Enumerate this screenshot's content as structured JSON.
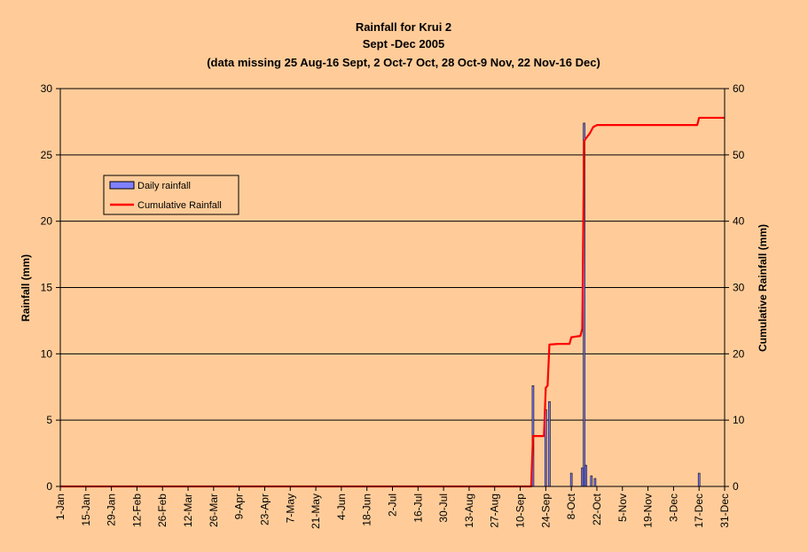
{
  "chart_data": {
    "type": "bar+line",
    "title": "Rainfall for Krui 2",
    "subtitle": "Sept -Dec 2005",
    "note": "(data missing 25 Aug-16 Sept, 2 Oct-7 Oct, 28 Oct-9 Nov, 22 Nov-16 Dec)",
    "ylabel": "Rainfall (mm)",
    "y2label": "Cumulative Rainfall (mm)",
    "ylim": [
      0,
      30
    ],
    "y2lim": [
      0,
      60
    ],
    "yticks": [
      "0",
      "5",
      "10",
      "15",
      "20",
      "25",
      "30"
    ],
    "y2ticks": [
      "0",
      "10",
      "20",
      "30",
      "40",
      "50",
      "60"
    ],
    "xlim": [
      "1-Jan",
      "31-Dec"
    ],
    "xtick_labels": [
      "1-Jan",
      "15-Jan",
      "29-Jan",
      "12-Feb",
      "26-Feb",
      "12-Mar",
      "26-Mar",
      "9-Apr",
      "23-Apr",
      "7-May",
      "21-May",
      "4-Jun",
      "18-Jun",
      "2-Jul",
      "16-Jul",
      "30-Jul",
      "13-Aug",
      "27-Aug",
      "10-Sep",
      "24-Sep",
      "8-Oct",
      "22-Oct",
      "5-Nov",
      "19-Nov",
      "3-Dec",
      "17-Dec",
      "31-Dec"
    ],
    "grid": true,
    "legend": {
      "placement": "left",
      "entries": [
        "Daily rainfall",
        "Cumulative Rainfall"
      ]
    },
    "colors": {
      "bars": "#8080ff",
      "bar_edge": "#000000",
      "line": "#ff0000",
      "background": "#ffcc99"
    },
    "series": [
      {
        "name": "Daily rainfall",
        "type": "bar",
        "points": [
          {
            "x": "17-Sep",
            "y": 7.6
          },
          {
            "x": "24-Sep",
            "y": 5.8
          },
          {
            "x": "26-Sep",
            "y": 6.4
          },
          {
            "x": "8-Oct",
            "y": 1.0
          },
          {
            "x": "14-Oct",
            "y": 1.4
          },
          {
            "x": "15-Oct",
            "y": 27.4
          },
          {
            "x": "16-Oct",
            "y": 1.6
          },
          {
            "x": "19-Oct",
            "y": 0.8
          },
          {
            "x": "21-Oct",
            "y": 0.6
          },
          {
            "x": "17-Dec",
            "y": 1.0
          }
        ]
      },
      {
        "name": "Cumulative Rainfall",
        "type": "line",
        "points": [
          {
            "x": "1-Jan",
            "y": 0
          },
          {
            "x": "16-Sep",
            "y": 0
          },
          {
            "x": "17-Sep",
            "y": 7.6
          },
          {
            "x": "23-Sep",
            "y": 7.6
          },
          {
            "x": "24-Sep",
            "y": 14.9
          },
          {
            "x": "25-Sep",
            "y": 15.2
          },
          {
            "x": "26-Sep",
            "y": 21.4
          },
          {
            "x": "1-Oct",
            "y": 21.5
          },
          {
            "x": "7-Oct",
            "y": 21.5
          },
          {
            "x": "8-Oct",
            "y": 22.5
          },
          {
            "x": "13-Oct",
            "y": 22.7
          },
          {
            "x": "14-Oct",
            "y": 23.8
          },
          {
            "x": "15-Oct",
            "y": 52.0
          },
          {
            "x": "16-Oct",
            "y": 52.5
          },
          {
            "x": "18-Oct",
            "y": 53.2
          },
          {
            "x": "20-Oct",
            "y": 54.2
          },
          {
            "x": "22-Oct",
            "y": 54.5
          },
          {
            "x": "16-Dec",
            "y": 54.5
          },
          {
            "x": "17-Dec",
            "y": 55.6
          },
          {
            "x": "31-Dec",
            "y": 55.6
          }
        ]
      }
    ]
  }
}
